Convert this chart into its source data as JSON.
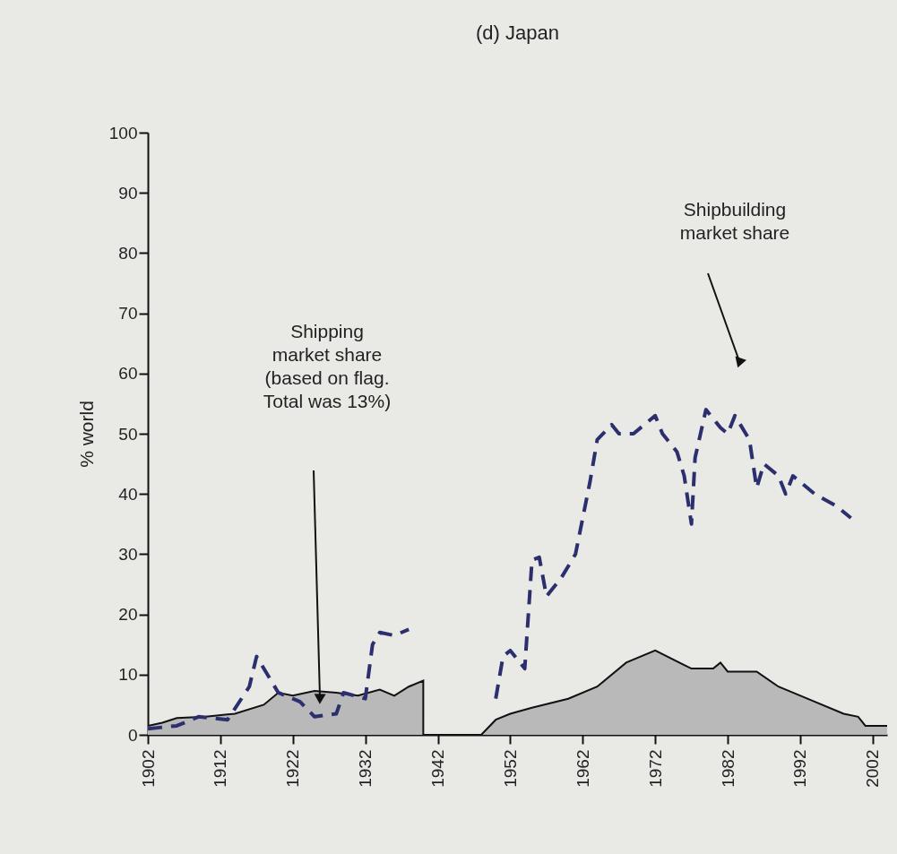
{
  "chart_data": {
    "type": "line",
    "title": "(d) Japan",
    "ylabel": "% world",
    "xlim": [
      1902,
      2004
    ],
    "xticks": [
      1902,
      1912,
      1922,
      1932,
      1942,
      1952,
      1962,
      1972,
      1982,
      1992,
      2002
    ],
    "ylim": [
      0,
      100
    ],
    "yticks": [
      0,
      10,
      20,
      30,
      40,
      50,
      60,
      70,
      80,
      90,
      100
    ],
    "grid": false,
    "series": [
      {
        "type": "area",
        "color": "#b9b9b9",
        "x": [
          1902,
          1904,
          1906,
          1910,
          1914,
          1918,
          1920,
          1922,
          1925,
          1928,
          1931,
          1934,
          1936,
          1938,
          1940,
          1940,
          1948,
          1950,
          1952,
          1955,
          1960,
          1964,
          1968,
          1972,
          1977,
          1980,
          1981,
          1982,
          1986,
          1989,
          1993,
          1998,
          2000,
          2001,
          2004
        ],
        "values": [
          1.5,
          2,
          2.8,
          3,
          3.5,
          5,
          7,
          6.5,
          7.3,
          7,
          6.5,
          7.5,
          6.5,
          8,
          9,
          0,
          0,
          2.5,
          3.5,
          4.5,
          6,
          8,
          12,
          14,
          11,
          11,
          12,
          10.5,
          10.5,
          8,
          6,
          3.5,
          3,
          1.5,
          1.5
        ]
      },
      {
        "type": "line",
        "line_style": "dashed",
        "color": "#2b2f6e",
        "x": [
          1902,
          1906,
          1909,
          1913,
          1916,
          1917,
          1920,
          1923,
          1925,
          1928,
          1929,
          1932,
          1933,
          1934,
          1936,
          1938,
          1944,
          1950,
          1951,
          1952,
          1954,
          1955,
          1956,
          1957,
          1959,
          1961,
          1963,
          1964,
          1966,
          1967,
          1969,
          1972,
          1973,
          1975,
          1976,
          1977,
          1977.5,
          1979,
          1981,
          1982,
          1983,
          1985,
          1986,
          1987,
          1989,
          1990,
          1991,
          1994,
          1997,
          1999
        ],
        "values": [
          1,
          1.5,
          3,
          2.5,
          8,
          13,
          7,
          5.5,
          3,
          3.5,
          7,
          6,
          15,
          17,
          16.5,
          17.5,
          null,
          6,
          13,
          14,
          11,
          29,
          29.5,
          23,
          26,
          30,
          42,
          49,
          51.5,
          50,
          50,
          53,
          50,
          47,
          43,
          35,
          46,
          54,
          51,
          50,
          53,
          49,
          41,
          45,
          43,
          40,
          43,
          40,
          38,
          36
        ]
      }
    ],
    "annotations": [
      "Shipping\nmarket share\n(based on flag.\nTotal was 13%)",
      "Shipbuilding\nmarket share"
    ]
  }
}
